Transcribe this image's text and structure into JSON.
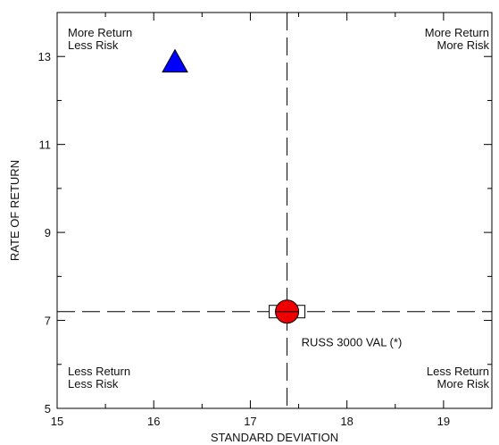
{
  "chart_data": {
    "type": "scatter",
    "xlabel": "STANDARD DEVIATION",
    "ylabel": "RATE OF RETURN",
    "xlim": [
      15,
      19.5
    ],
    "ylim": [
      5,
      14
    ],
    "x_ticks": [
      15,
      16,
      17,
      18,
      19
    ],
    "y_ticks": [
      5,
      7,
      9,
      11,
      13
    ],
    "x_ticks_minor": [
      15.5,
      16.5,
      17.5,
      18.5
    ],
    "y_ticks_minor": [
      6,
      8,
      10,
      12
    ],
    "reference_lines": {
      "x": 17.38,
      "y": 7.2
    },
    "grid": false,
    "quadrant_labels": {
      "top_left": [
        "More Return",
        "Less Risk"
      ],
      "top_right": [
        "More Return",
        "More Risk"
      ],
      "bottom_left": [
        "Less Return",
        "Less Risk"
      ],
      "bottom_right": [
        "Less Return",
        "More Risk"
      ]
    },
    "points": [
      {
        "x": 16.22,
        "y": 12.85,
        "marker": "triangle",
        "color": "#0000ff"
      },
      {
        "x": 17.38,
        "y": 7.2,
        "marker": "circle",
        "color": "#ee0000",
        "label": "RUSS 3000 VAL (*)"
      },
      {
        "x": 17.38,
        "y": 7.2,
        "marker": "rectangle",
        "color": "#ffffff"
      }
    ]
  }
}
